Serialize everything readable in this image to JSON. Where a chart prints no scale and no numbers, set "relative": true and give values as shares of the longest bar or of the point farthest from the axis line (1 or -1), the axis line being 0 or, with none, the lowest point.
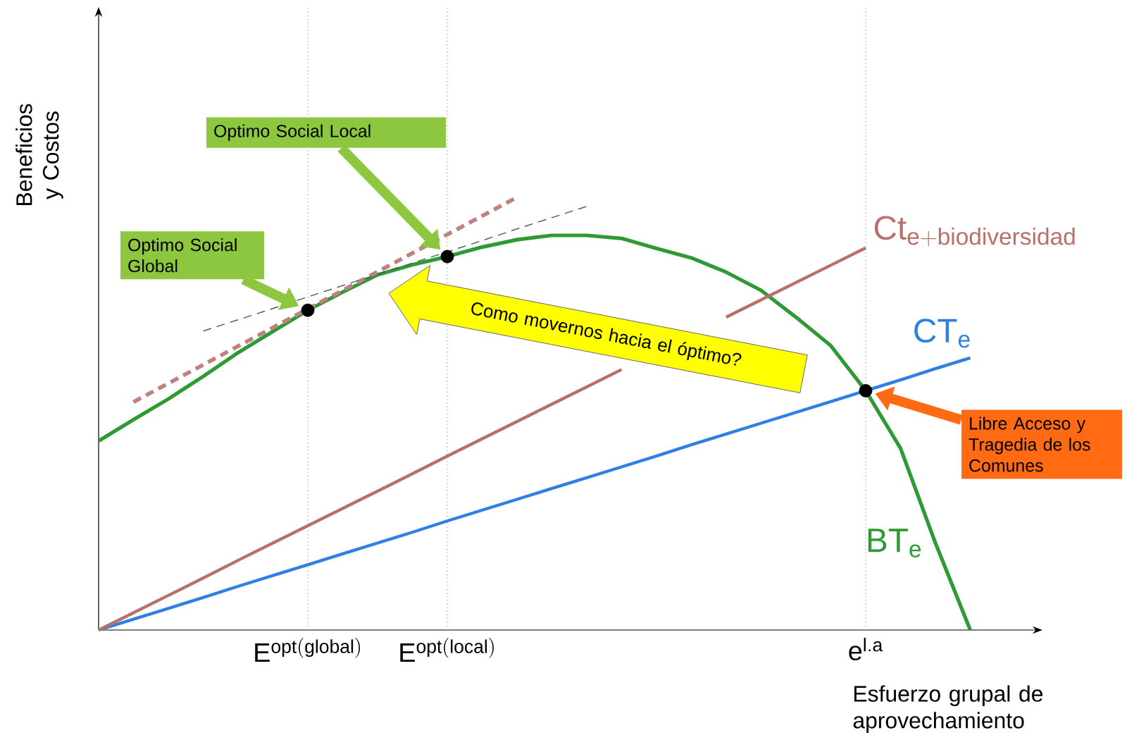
{
  "chart_data": {
    "type": "line",
    "relative": true,
    "marker": "none",
    "xlabel": "Esfuerzo grupal de aprovechamiento",
    "ylabel": "Beneficios y Costos",
    "categories": [
      null,
      null,
      null,
      null,
      null,
      null,
      "\\mathrm{E}^{\\mathrm{opt(global)}}",
      null,
      null,
      null,
      "\\mathrm{E}^{\\mathrm{opt(local)}}",
      null,
      null,
      null,
      null,
      null,
      null,
      null,
      null,
      null,
      null,
      null,
      "\\mathrm{e}^{\\mathrm{l.a}}",
      null,
      null,
      null,
      null,
      null
    ],
    "series": [
      {
        "name": "\\mathrm{BT}_{\\mathrm{e}}",
        "color": "#2e9a34",
        "values": [
          0.437,
          0.486,
          0.534,
          0.586,
          0.641,
          0.69,
          0.739,
          0.781,
          0.821,
          0.844,
          0.863,
          0.885,
          0.902,
          0.912,
          0.912,
          0.905,
          0.882,
          0.86,
          0.827,
          0.785,
          0.723,
          0.657,
          0.553,
          0.42,
          0.201,
          0,
          null,
          null
        ]
      },
      {
        "name": "\\mathrm{CT}_{\\mathrm{e}}",
        "color": "#2f7fe6",
        "values": [
          0,
          0.025,
          0.05,
          0.075,
          0.101,
          0.126,
          0.151,
          0.176,
          0.201,
          0.226,
          0.252,
          0.277,
          0.302,
          0.327,
          0.352,
          0.377,
          0.402,
          0.428,
          0.453,
          0.478,
          0.503,
          0.528,
          0.553,
          0.578,
          0.604,
          0.629,
          null,
          null
        ]
      },
      {
        "name": "\\mathrm{Ct}_{\\mathrm{e+biodiversidad}}",
        "color": "#b8706a",
        "values": [
          0,
          0.04,
          0.08,
          0.12,
          0.161,
          0.201,
          0.241,
          0.281,
          0.321,
          0.361,
          0.402,
          0.442,
          0.482,
          0.522,
          0.562,
          0.602,
          null,
          null,
          0.723,
          0.763,
          0.803,
          0.843,
          0.883,
          null,
          null,
          null,
          null,
          null
        ]
      },
      {
        "line_style": "dashed",
        "color": "#c08080",
        "values": [
          null,
          0.527,
          0.57,
          0.613,
          0.656,
          0.699,
          0.742,
          0.785,
          0.828,
          0.871,
          0.914,
          0.957,
          1.0,
          null,
          null,
          null,
          null,
          null,
          null,
          null,
          null,
          null,
          null,
          null,
          null,
          null,
          null,
          null
        ]
      },
      {
        "line_style": "dashed",
        "color": "#555555",
        "values": [
          null,
          null,
          null,
          0.691,
          0.717,
          0.743,
          0.77,
          0.796,
          0.822,
          0.848,
          0.874,
          0.9,
          0.927,
          0.953,
          0.979,
          null,
          null,
          null,
          null,
          null,
          null,
          null,
          null,
          null,
          null,
          null,
          null,
          null
        ]
      },
      {
        "type": "scatter",
        "marker": "circle",
        "color": "#000000",
        "values": [
          null,
          null,
          null,
          null,
          null,
          null,
          0.739,
          null,
          null,
          null,
          0.863,
          null,
          null,
          null,
          null,
          null,
          null,
          null,
          null,
          null,
          null,
          null,
          0.553,
          null,
          null,
          null,
          null,
          null
        ]
      }
    ],
    "ref_lines": [
      {
        "axis": "x",
        "value": "\\mathrm{E}^{\\mathrm{opt(global)}}",
        "color": "#999999",
        "line_style": "dotted"
      },
      {
        "axis": "x",
        "value": "\\mathrm{E}^{\\mathrm{opt(local)}}",
        "color": "#999999",
        "line_style": "dotted"
      },
      {
        "axis": "x",
        "value": "\\mathrm{e}^{\\mathrm{l.a}}",
        "color": "#999999",
        "line_style": "dotted"
      }
    ],
    "annotations": [
      "Optimo Social Local",
      "Optimo Social Global",
      "Libre Acceso y Tragedia de los Comunes",
      "Como movernos hacia el óptimo?"
    ]
  }
}
